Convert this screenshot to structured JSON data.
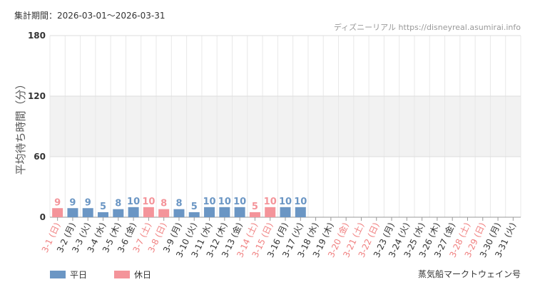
{
  "chart_data": {
    "type": "bar",
    "period": "集計期間：2026-03-01～2026-03-31",
    "source": "ディズニーリアル https://disneyreal.asumirai.info",
    "y_label": "平均待ち時間（分）",
    "attraction": "蒸気船マークトウェイン号",
    "categories": [
      "3-1 (日)",
      "3-2 (月)",
      "3-3 (火)",
      "3-4 (水)",
      "3-5 (木)",
      "3-6 (金)",
      "3-7 (土)",
      "3-8 (日)",
      "3-9 (月)",
      "3-10 (火)",
      "3-11 (水)",
      "3-12 (木)",
      "3-13 (金)",
      "3-14 (土)",
      "3-15 (日)",
      "3-16 (月)",
      "3-17 (火)",
      "3-18 (水)",
      "3-19 (木)",
      "3-20 (金)",
      "3-21 (土)",
      "3-22 (日)",
      "3-23 (月)",
      "3-24 (火)",
      "3-25 (水)",
      "3-26 (木)",
      "3-27 (金)",
      "3-28 (土)",
      "3-29 (日)",
      "3-30 (月)",
      "3-31 (火)"
    ],
    "category_label_colors": [
      "#f08080",
      "#333",
      "#333",
      "#333",
      "#333",
      "#333",
      "#f08080",
      "#f08080",
      "#333",
      "#333",
      "#333",
      "#333",
      "#333",
      "#f08080",
      "#f08080",
      "#333",
      "#333",
      "#333",
      "#333",
      "#f08080",
      "#f08080",
      "#f08080",
      "#333",
      "#333",
      "#333",
      "#333",
      "#333",
      "#f08080",
      "#f08080",
      "#333",
      "#333"
    ],
    "series": [
      {
        "name": "平日",
        "color": "#6b96c4",
        "values": [
          null,
          9,
          9,
          5,
          8,
          10,
          null,
          null,
          8,
          5,
          10,
          10,
          10,
          null,
          null,
          10,
          10,
          null,
          null,
          null,
          null,
          null,
          null,
          null,
          null,
          null,
          null,
          null,
          null,
          null,
          null
        ]
      },
      {
        "name": "休日",
        "color": "#f4949a",
        "values": [
          9,
          null,
          null,
          null,
          null,
          null,
          10,
          8,
          null,
          null,
          null,
          null,
          null,
          5,
          10,
          null,
          null,
          null,
          null,
          null,
          null,
          null,
          null,
          null,
          null,
          null,
          null,
          null,
          null,
          null,
          null
        ]
      }
    ],
    "ylim": [
      0,
      180
    ],
    "yticks": [
      0,
      60,
      120,
      180
    ],
    "plot_bands": [
      {
        "from": 60,
        "to": 120,
        "color": "#f2f2f2"
      }
    ],
    "grid": true
  }
}
